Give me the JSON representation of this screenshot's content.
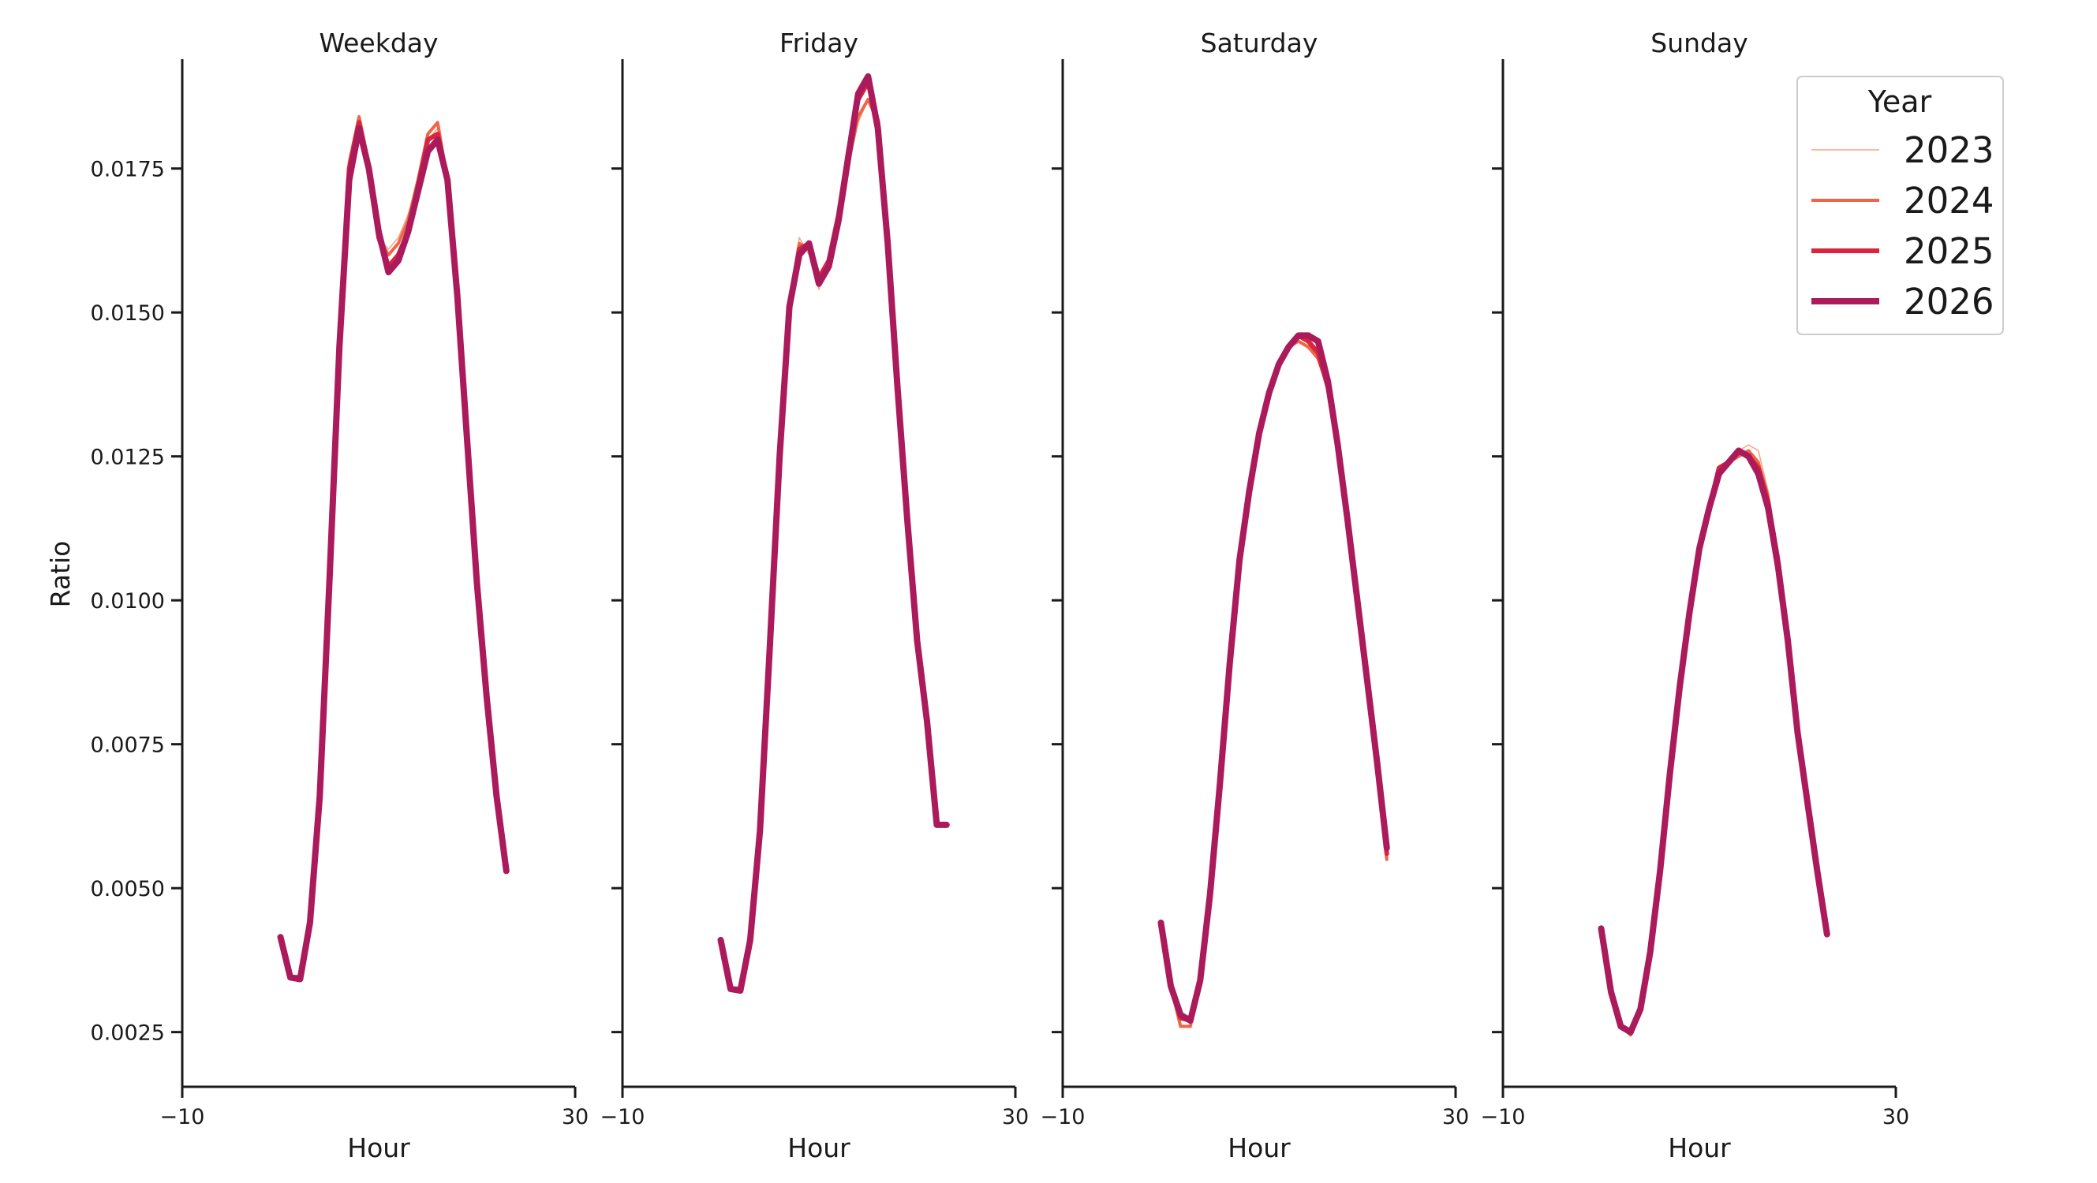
{
  "chart_data": {
    "type": "line",
    "xlabel": "Hour",
    "ylabel": "Ratio",
    "xlim": [
      -10,
      30
    ],
    "ylim": [
      0.00155,
      0.0194
    ],
    "x_ticks": [
      -10,
      30
    ],
    "x_tick_labels": [
      "−10",
      "30"
    ],
    "y_ticks": [
      0.0025,
      0.005,
      0.0075,
      0.01,
      0.0125,
      0.015,
      0.0175
    ],
    "y_tick_labels": [
      "0.0025",
      "0.0050",
      "0.0075",
      "0.0100",
      "0.0125",
      "0.0150",
      "0.0175"
    ],
    "grid": false,
    "legend": {
      "title": "Year",
      "position": "top-right",
      "entries": [
        {
          "label": "2023",
          "color": "#f4a582",
          "width": 1.5
        },
        {
          "label": "2024",
          "color": "#ef6548",
          "width": 4
        },
        {
          "label": "2025",
          "color": "#d7263d",
          "width": 6
        },
        {
          "label": "2026",
          "color": "#ab1a5a",
          "width": 8
        }
      ]
    },
    "x": [
      0,
      1,
      2,
      3,
      4,
      5,
      6,
      7,
      8,
      9,
      10,
      11,
      12,
      13,
      14,
      15,
      16,
      17,
      18,
      19,
      20,
      21,
      22,
      23
    ],
    "facets": [
      {
        "title": "Weekday",
        "series": [
          {
            "name": "2023",
            "values": [
              0.00415,
              0.00345,
              0.00345,
              0.0044,
              0.0066,
              0.0105,
              0.0146,
              0.0175,
              0.0183,
              0.0174,
              0.0163,
              0.0161,
              0.0163,
              0.0167,
              0.0173,
              0.018,
              0.0182,
              0.0173,
              0.0153,
              0.0128,
              0.0103,
              0.0083,
              0.0066,
              0.0053
            ]
          },
          {
            "name": "2024",
            "values": [
              0.00415,
              0.00345,
              0.00345,
              0.0044,
              0.0066,
              0.0105,
              0.0146,
              0.0176,
              0.0184,
              0.0176,
              0.0163,
              0.016,
              0.0162,
              0.0166,
              0.0173,
              0.0181,
              0.0183,
              0.0173,
              0.0153,
              0.0128,
              0.0103,
              0.0083,
              0.0066,
              0.0053
            ]
          },
          {
            "name": "2025",
            "values": [
              0.00415,
              0.00345,
              0.00345,
              0.0044,
              0.0066,
              0.0105,
              0.0145,
              0.0175,
              0.0183,
              0.0175,
              0.0163,
              0.0158,
              0.016,
              0.0164,
              0.0172,
              0.018,
              0.0181,
              0.0173,
              0.0153,
              0.0128,
              0.0103,
              0.0083,
              0.0066,
              0.0053
            ]
          },
          {
            "name": "2026",
            "values": [
              0.00415,
              0.00345,
              0.00342,
              0.0044,
              0.0066,
              0.0104,
              0.0144,
              0.0173,
              0.0182,
              0.0175,
              0.0164,
              0.0157,
              0.0159,
              0.0164,
              0.0171,
              0.0178,
              0.018,
              0.0173,
              0.0153,
              0.0128,
              0.0103,
              0.0083,
              0.0066,
              0.0053
            ]
          }
        ]
      },
      {
        "title": "Friday",
        "series": [
          {
            "name": "2023",
            "values": [
              0.0041,
              0.00325,
              0.00325,
              0.0041,
              0.006,
              0.0092,
              0.0126,
              0.0152,
              0.0163,
              0.016,
              0.0154,
              0.0159,
              0.0167,
              0.0176,
              0.0183,
              0.0187,
              0.0183,
              0.0162,
              0.0137,
              0.0114,
              0.0093,
              0.0079,
              0.0061,
              0.0061
            ]
          },
          {
            "name": "2024",
            "values": [
              0.0041,
              0.00325,
              0.00325,
              0.0041,
              0.006,
              0.0092,
              0.0126,
              0.0152,
              0.0162,
              0.0161,
              0.0155,
              0.0159,
              0.0167,
              0.0176,
              0.0184,
              0.0187,
              0.0183,
              0.0162,
              0.0137,
              0.0114,
              0.0093,
              0.0079,
              0.0061,
              0.0061
            ]
          },
          {
            "name": "2025",
            "values": [
              0.0041,
              0.00325,
              0.00325,
              0.0041,
              0.006,
              0.0092,
              0.0126,
              0.0151,
              0.0161,
              0.0162,
              0.0156,
              0.0159,
              0.0167,
              0.0178,
              0.0187,
              0.019,
              0.0183,
              0.0162,
              0.0137,
              0.0114,
              0.0093,
              0.0079,
              0.0061,
              0.0061
            ]
          },
          {
            "name": "2026",
            "values": [
              0.0041,
              0.00325,
              0.00322,
              0.0041,
              0.006,
              0.0092,
              0.0125,
              0.0151,
              0.016,
              0.0162,
              0.0155,
              0.0158,
              0.0166,
              0.0177,
              0.0188,
              0.0191,
              0.0182,
              0.0162,
              0.0137,
              0.0114,
              0.0093,
              0.0079,
              0.0061,
              0.0061
            ]
          }
        ]
      },
      {
        "title": "Saturday",
        "series": [
          {
            "name": "2023",
            "values": [
              0.0044,
              0.0033,
              0.0027,
              0.0027,
              0.0034,
              0.0049,
              0.0068,
              0.0089,
              0.0107,
              0.0119,
              0.0129,
              0.0136,
              0.0141,
              0.0144,
              0.0146,
              0.0145,
              0.0142,
              0.0137,
              0.0127,
              0.0114,
              0.01,
              0.0086,
              0.0072,
              0.0055
            ]
          },
          {
            "name": "2024",
            "values": [
              0.0044,
              0.0033,
              0.0026,
              0.0026,
              0.0034,
              0.0049,
              0.0068,
              0.0089,
              0.0107,
              0.0119,
              0.0129,
              0.0136,
              0.0141,
              0.0144,
              0.0145,
              0.0144,
              0.0142,
              0.0137,
              0.0127,
              0.0114,
              0.01,
              0.0086,
              0.0072,
              0.0055
            ]
          },
          {
            "name": "2025",
            "values": [
              0.0044,
              0.0033,
              0.00275,
              0.0027,
              0.0034,
              0.0049,
              0.0068,
              0.0089,
              0.0107,
              0.0119,
              0.0129,
              0.0136,
              0.0141,
              0.0144,
              0.0146,
              0.0145,
              0.0143,
              0.0137,
              0.0127,
              0.0114,
              0.01,
              0.0086,
              0.0072,
              0.0056
            ]
          },
          {
            "name": "2026",
            "values": [
              0.0044,
              0.0033,
              0.0028,
              0.0027,
              0.0034,
              0.0049,
              0.0068,
              0.0089,
              0.0107,
              0.0119,
              0.0129,
              0.0136,
              0.0141,
              0.0144,
              0.0146,
              0.0146,
              0.0145,
              0.0138,
              0.0127,
              0.0114,
              0.01,
              0.0086,
              0.0072,
              0.0057
            ]
          }
        ]
      },
      {
        "title": "Sunday",
        "series": [
          {
            "name": "2023",
            "values": [
              0.0043,
              0.0032,
              0.0026,
              0.0025,
              0.0029,
              0.0039,
              0.0053,
              0.007,
              0.0085,
              0.0098,
              0.0109,
              0.0117,
              0.0123,
              0.0124,
              0.0126,
              0.0127,
              0.0126,
              0.0119,
              0.0107,
              0.0093,
              0.0077,
              0.0065,
              0.0053,
              0.0042
            ]
          },
          {
            "name": "2024",
            "values": [
              0.0043,
              0.0032,
              0.0026,
              0.00245,
              0.0029,
              0.0039,
              0.0053,
              0.007,
              0.0085,
              0.0098,
              0.0109,
              0.0116,
              0.0123,
              0.0124,
              0.0125,
              0.0126,
              0.0124,
              0.0118,
              0.0107,
              0.0093,
              0.0077,
              0.0065,
              0.0053,
              0.0042
            ]
          },
          {
            "name": "2025",
            "values": [
              0.0043,
              0.0032,
              0.0026,
              0.0025,
              0.0029,
              0.0039,
              0.0053,
              0.007,
              0.0085,
              0.0098,
              0.0109,
              0.0116,
              0.0123,
              0.0124,
              0.0126,
              0.0125,
              0.0123,
              0.0117,
              0.0107,
              0.0093,
              0.0077,
              0.0065,
              0.0053,
              0.0042
            ]
          },
          {
            "name": "2026",
            "values": [
              0.0043,
              0.0032,
              0.0026,
              0.0025,
              0.0029,
              0.0039,
              0.0053,
              0.007,
              0.0085,
              0.0098,
              0.0109,
              0.0116,
              0.0122,
              0.0124,
              0.0126,
              0.0125,
              0.0122,
              0.0116,
              0.0106,
              0.0093,
              0.0077,
              0.0065,
              0.0053,
              0.0042
            ]
          }
        ]
      }
    ]
  }
}
